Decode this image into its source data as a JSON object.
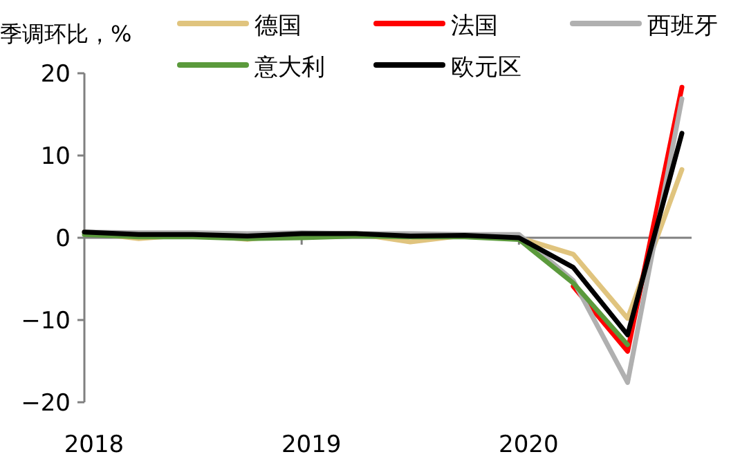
{
  "chart_data": {
    "type": "line",
    "ylabel": "季调环比，%",
    "categories": [
      "2018",
      null,
      null,
      null,
      "2019",
      null,
      null,
      null,
      "2020",
      null,
      null,
      null
    ],
    "ylim": [
      -20,
      20
    ],
    "yticks": [
      -20,
      -10,
      0,
      10,
      20
    ],
    "legend": "top",
    "marker": "none",
    "line_style": "solid",
    "series": [
      {
        "name": "德国",
        "color": "#e0c47e",
        "values": [
          0.7,
          -0.1,
          0.4,
          -0.2,
          0.5,
          0.5,
          -0.5,
          0.3,
          0.0,
          -2.0,
          -9.8,
          8.3
        ]
      },
      {
        "name": "法国",
        "color": "#ff0000",
        "values": [
          null,
          null,
          null,
          null,
          null,
          null,
          null,
          null,
          null,
          -5.9,
          -13.8,
          18.3
        ]
      },
      {
        "name": "西班牙",
        "color": "#b0b0b0",
        "values": [
          0.7,
          0.6,
          0.6,
          0.5,
          0.6,
          0.5,
          0.5,
          0.4,
          0.4,
          -5.2,
          -17.6,
          16.9
        ]
      },
      {
        "name": "意大利",
        "color": "#5b9a3c",
        "values": [
          0.4,
          0.1,
          0.1,
          -0.1,
          0.0,
          0.2,
          0.1,
          0.1,
          -0.2,
          -5.5,
          -13.0,
          null
        ]
      },
      {
        "name": "欧元区",
        "color": "#000000",
        "values": [
          0.7,
          0.4,
          0.4,
          0.2,
          0.5,
          0.5,
          0.2,
          0.3,
          0.0,
          -3.6,
          -11.8,
          12.7
        ]
      }
    ]
  }
}
